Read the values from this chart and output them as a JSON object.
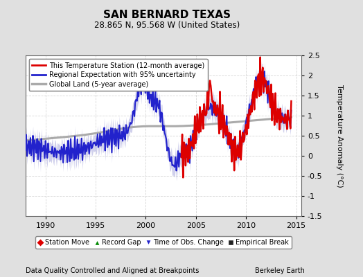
{
  "title": "SAN BERNARD TEXAS",
  "subtitle": "28.865 N, 95.568 W (United States)",
  "ylabel": "Temperature Anomaly (°C)",
  "xlabel_left": "Data Quality Controlled and Aligned at Breakpoints",
  "xlabel_right": "Berkeley Earth",
  "ylim": [
    -1.5,
    2.5
  ],
  "xlim": [
    1988.0,
    2015.5
  ],
  "yticks": [
    -1.5,
    -1.0,
    -0.5,
    0.0,
    0.5,
    1.0,
    1.5,
    2.0,
    2.5
  ],
  "ytick_labels": [
    "-1.5",
    "-1",
    "-0.5",
    "0",
    "0.5",
    "1",
    "1.5",
    "2",
    "2.5"
  ],
  "xticks": [
    1990,
    1995,
    2000,
    2005,
    2010,
    2015
  ],
  "bg_color": "#e0e0e0",
  "plot_bg_color": "#ffffff",
  "grid_color": "#cccccc",
  "red_color": "#dd0000",
  "blue_color": "#2222cc",
  "blue_fill_color": "#aaaadd",
  "gray_color": "#aaaaaa",
  "legend_items_line": [
    {
      "label": "This Temperature Station (12-month average)",
      "color": "#dd0000",
      "lw": 2.0
    },
    {
      "label": "Regional Expectation with 95% uncertainty",
      "color": "#2222cc",
      "lw": 2.0
    },
    {
      "label": "Global Land (5-year average)",
      "color": "#aaaaaa",
      "lw": 2.5
    }
  ],
  "legend2_items": [
    {
      "label": "Station Move",
      "marker": "D",
      "color": "#dd0000"
    },
    {
      "label": "Record Gap",
      "marker": "^",
      "color": "#008800"
    },
    {
      "label": "Time of Obs. Change",
      "marker": "v",
      "color": "#2222cc"
    },
    {
      "label": "Empirical Break",
      "marker": "s",
      "color": "#222222"
    }
  ]
}
